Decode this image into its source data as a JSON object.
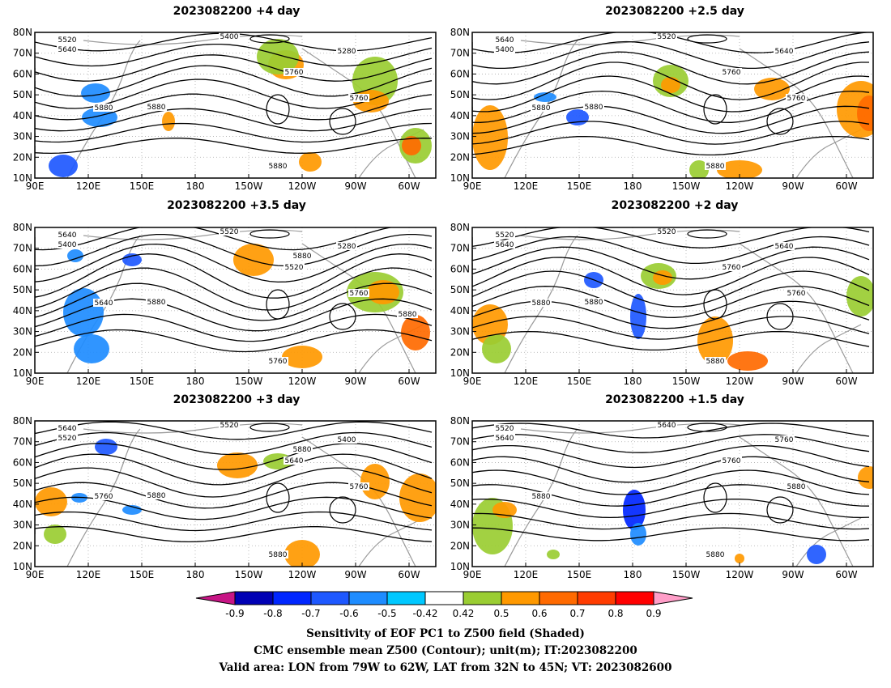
{
  "panels": [
    {
      "title": "2023082200  +4 day"
    },
    {
      "title": "2023082200  +2.5  day"
    },
    {
      "title": "2023082200  +3.5  day"
    },
    {
      "title": "2023082200  +2  day"
    },
    {
      "title": "2023082200  +3  day"
    },
    {
      "title": "2023082200  +1.5  day"
    }
  ],
  "colorbar": {
    "colors": [
      "#c71585",
      "#0000b4",
      "#0026ff",
      "#1e58ff",
      "#1e8cff",
      "#00c8ff",
      "#ffffff",
      "#9acd32",
      "#ff9900",
      "#ff6a00",
      "#ff3c00",
      "#ff0000",
      "#ff9ec8"
    ],
    "labels": [
      "-0.9",
      "-0.8",
      "-0.7",
      "-0.6",
      "-0.5",
      "-0.42",
      "0.42",
      "0.5",
      "0.6",
      "0.7",
      "0.8",
      "0.9"
    ]
  },
  "captions": {
    "line1": "Sensitivity of EOF PC1 to Z500 field (Shaded)",
    "line2": "CMC ensemble mean Z500 (Contour); unit(m); IT:2023082200",
    "line3": "Valid area: LON from 79W to 62W, LAT from 32N to 45N; VT: 2023082600"
  },
  "chart_data": [
    {
      "type": "heatmap",
      "title": "2023082200  +4 day",
      "x_ticks": [
        "90E",
        "120E",
        "150E",
        "180",
        "150W",
        "120W",
        "90W",
        "60W"
      ],
      "y_ticks": [
        "10N",
        "20N",
        "30N",
        "40N",
        "50N",
        "60N",
        "70N",
        "80N"
      ],
      "contour_labels": [
        "5400",
        "5520",
        "5640",
        "5280",
        "5760",
        "5880",
        "5760",
        "5880",
        "5880"
      ]
    },
    {
      "type": "heatmap",
      "title": "2023082200  +2.5  day",
      "x_ticks": [
        "90E",
        "120E",
        "150E",
        "180",
        "150W",
        "120W",
        "90W",
        "60W"
      ],
      "y_ticks": [
        "10N",
        "20N",
        "30N",
        "40N",
        "50N",
        "60N",
        "70N",
        "80N"
      ],
      "contour_labels": [
        "5520",
        "5640",
        "5400",
        "5640",
        "5760",
        "5880",
        "5760",
        "5880",
        "5880"
      ]
    },
    {
      "type": "heatmap",
      "title": "2023082200  +3.5  day",
      "x_ticks": [
        "90E",
        "120E",
        "150E",
        "180",
        "150W",
        "120W",
        "90W",
        "60W"
      ],
      "y_ticks": [
        "10N",
        "20N",
        "30N",
        "40N",
        "50N",
        "60N",
        "70N",
        "80N"
      ],
      "contour_labels": [
        "5520",
        "5640",
        "5400",
        "5280",
        "5520",
        "5640",
        "5760",
        "5760",
        "5880",
        "5880",
        "5880"
      ]
    },
    {
      "type": "heatmap",
      "title": "2023082200  +2  day",
      "x_ticks": [
        "90E",
        "120E",
        "150E",
        "180",
        "150W",
        "120W",
        "90W",
        "60W"
      ],
      "y_ticks": [
        "10N",
        "20N",
        "30N",
        "40N",
        "50N",
        "60N",
        "70N",
        "80N"
      ],
      "contour_labels": [
        "5520",
        "5520",
        "5640",
        "5640",
        "5760",
        "5880",
        "5760",
        "5880",
        "5880"
      ]
    },
    {
      "type": "heatmap",
      "title": "2023082200  +3  day",
      "x_ticks": [
        "90E",
        "120E",
        "150E",
        "180",
        "150W",
        "120W",
        "90W",
        "60W"
      ],
      "y_ticks": [
        "10N",
        "20N",
        "30N",
        "40N",
        "50N",
        "60N",
        "70N",
        "80N"
      ],
      "contour_labels": [
        "5520",
        "5640",
        "5520",
        "5400",
        "5640",
        "5760",
        "5760",
        "5880",
        "5880",
        "5880"
      ]
    },
    {
      "type": "heatmap",
      "title": "2023082200  +1.5  day",
      "x_ticks": [
        "90E",
        "120E",
        "150E",
        "180",
        "150W",
        "120W",
        "90W",
        "60W"
      ],
      "y_ticks": [
        "10N",
        "20N",
        "30N",
        "40N",
        "50N",
        "60N",
        "70N",
        "80N"
      ],
      "contour_labels": [
        "5640",
        "5520",
        "5640",
        "5760",
        "5760",
        "5880",
        "5880",
        "5880"
      ]
    }
  ]
}
